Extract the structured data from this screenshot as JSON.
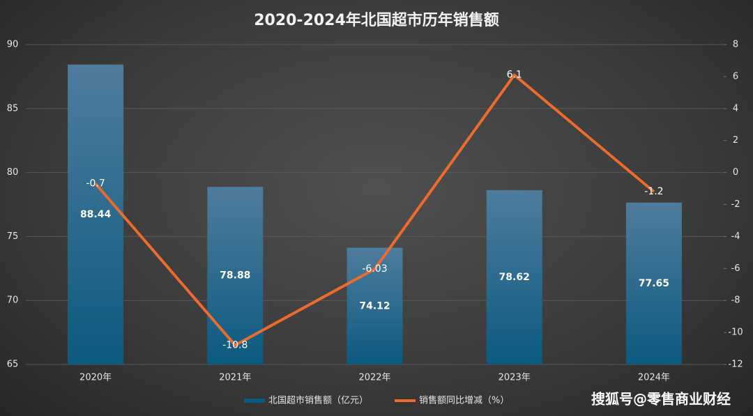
{
  "chart_data": {
    "type": "bar",
    "title": "2020-2024年北国超市历年销售额",
    "categories": [
      "2020年",
      "2021年",
      "2022年",
      "2023年",
      "2024年"
    ],
    "series": [
      {
        "name": "北国超市销售额（亿元）",
        "type": "bar",
        "color": "#0b5a80",
        "values": [
          88.44,
          78.88,
          74.12,
          78.62,
          77.65
        ]
      },
      {
        "name": "销售额同比增减（%）",
        "type": "line",
        "axis": "y2",
        "color": "#ec6b2d",
        "values": [
          -0.7,
          -10.8,
          -6.03,
          6.1,
          -1.2
        ]
      }
    ],
    "ylim": [
      65,
      90
    ],
    "yticks": [
      65,
      70,
      75,
      80,
      85,
      90
    ],
    "y2lim": [
      -12,
      8
    ],
    "y2ticks": [
      -12,
      -10,
      -8,
      -6,
      -4,
      -2,
      0,
      2,
      4,
      6,
      8
    ],
    "grid": true,
    "legend": "bottom",
    "watermark": "搜狐号@零售商业财经"
  }
}
